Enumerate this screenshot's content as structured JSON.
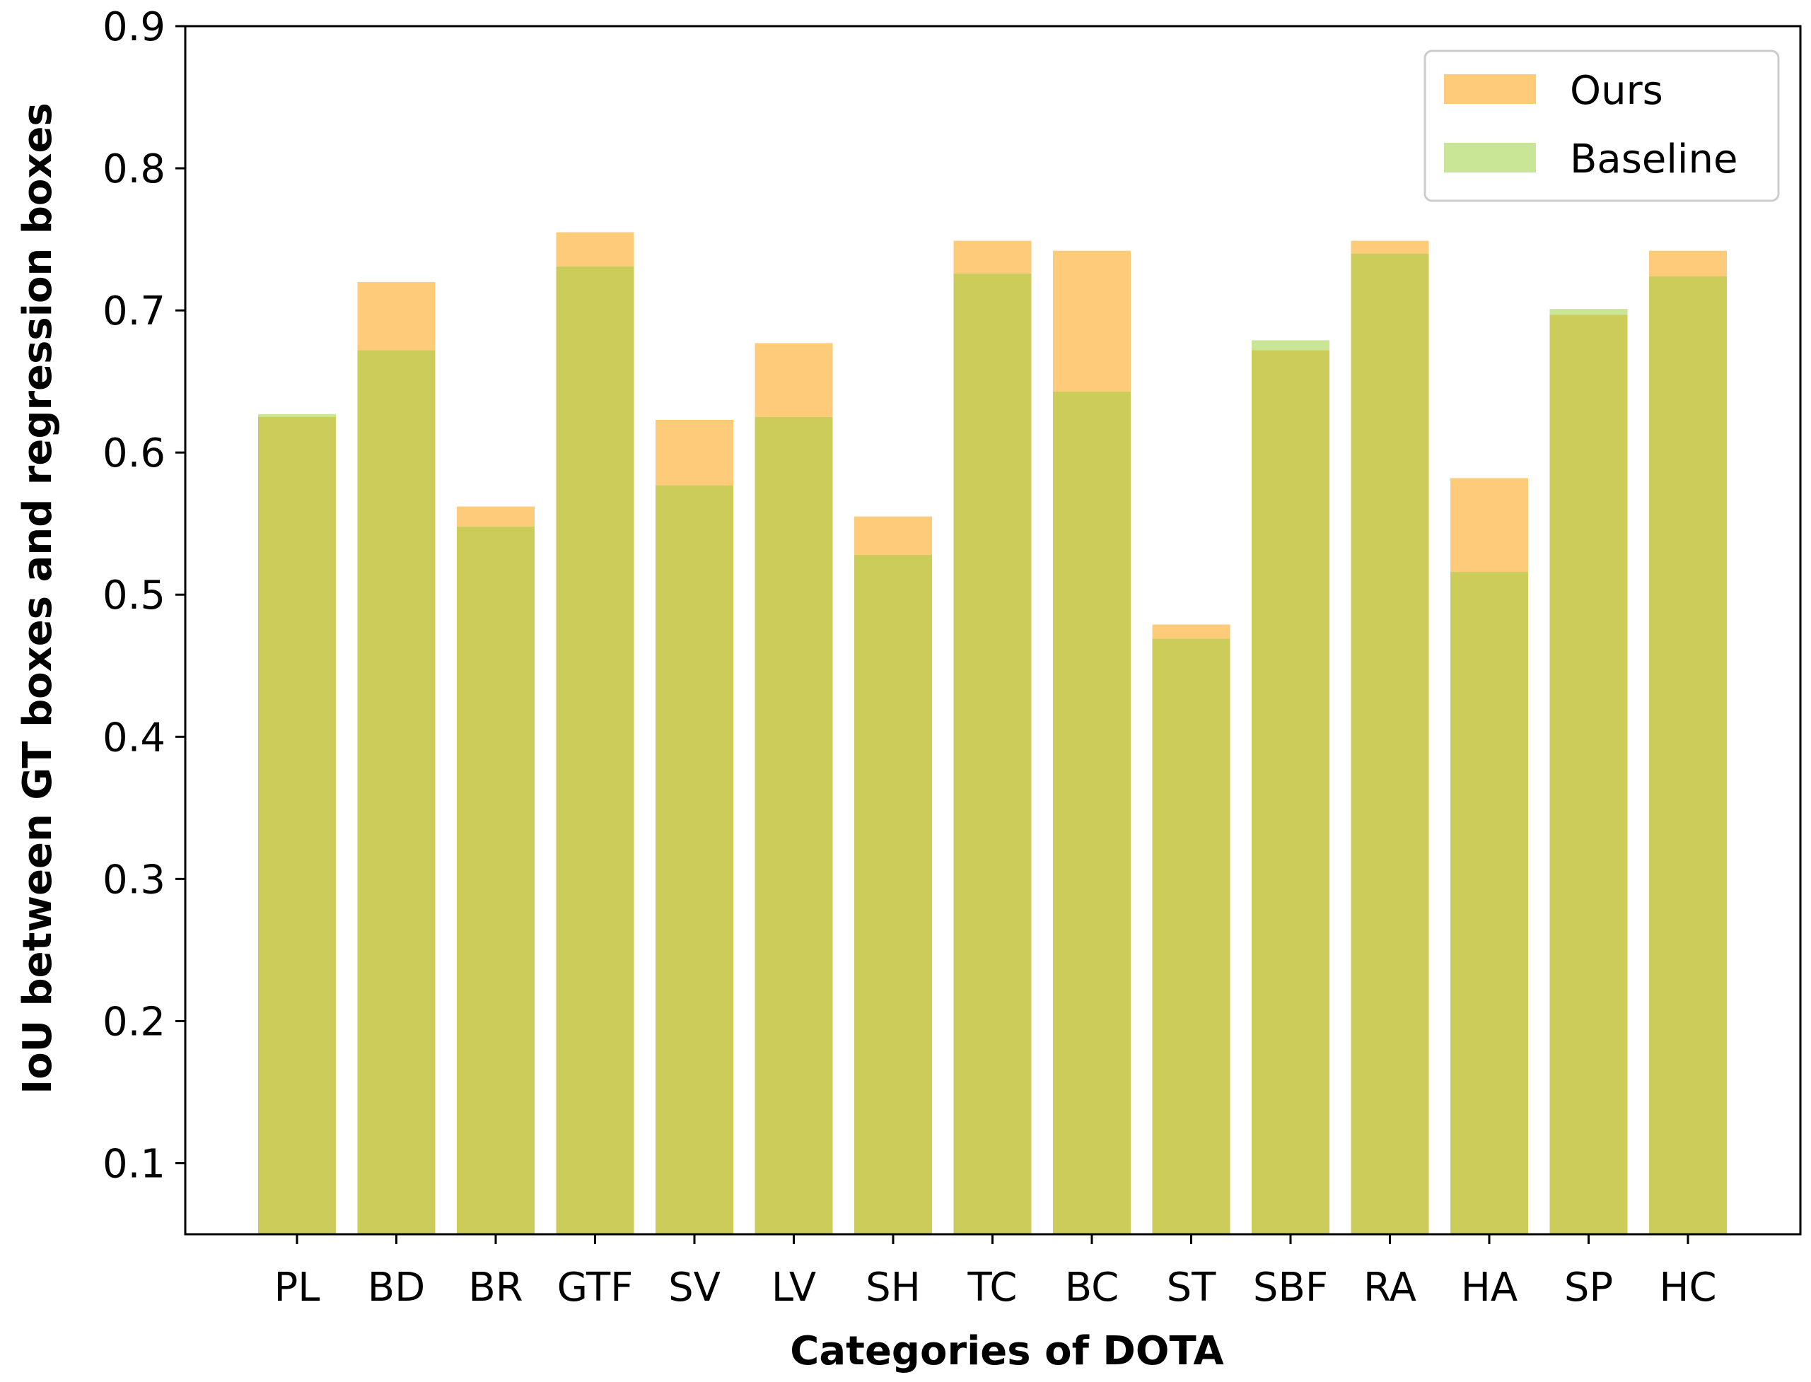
{
  "chart_data": {
    "type": "bar",
    "title": "",
    "xlabel": "Categories of DOTA",
    "ylabel": "IoU between GT boxes and regression boxes",
    "categories": [
      "PL",
      "BD",
      "BR",
      "GTF",
      "SV",
      "LV",
      "SH",
      "TC",
      "BC",
      "ST",
      "SBF",
      "RA",
      "HA",
      "SP",
      "HC"
    ],
    "series": [
      {
        "name": "Ours",
        "color": "#fdb53c",
        "values": [
          0.625,
          0.72,
          0.562,
          0.755,
          0.623,
          0.677,
          0.555,
          0.749,
          0.742,
          0.479,
          0.672,
          0.749,
          0.582,
          0.697,
          0.742
        ]
      },
      {
        "name": "Baseline",
        "color": "#98d34b",
        "values": [
          0.627,
          0.672,
          0.548,
          0.731,
          0.577,
          0.625,
          0.528,
          0.726,
          0.643,
          0.469,
          0.679,
          0.74,
          0.516,
          0.701,
          0.724
        ]
      }
    ],
    "overlap_color": "#cccc5a",
    "ylim": [
      0.05,
      0.9
    ],
    "yticks": [
      "0.1",
      "0.2",
      "0.3",
      "0.4",
      "0.5",
      "0.6",
      "0.7",
      "0.8",
      "0.9"
    ],
    "grid": false,
    "legend_position": "top-right"
  }
}
